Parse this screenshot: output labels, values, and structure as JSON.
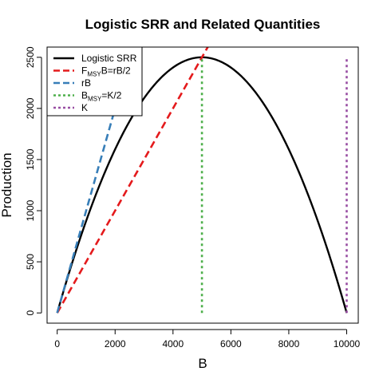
{
  "chart_data": {
    "type": "line",
    "title": "Logistic SRR and Related Quantities",
    "xlabel": "B",
    "ylabel": "Production",
    "xlim": [
      -350,
      10400
    ],
    "ylim": [
      -100,
      2600
    ],
    "xticks": [
      0,
      2000,
      4000,
      6000,
      8000,
      10000
    ],
    "yticks": [
      0,
      500,
      1000,
      1500,
      2000,
      2500
    ],
    "legend_position": "top-left",
    "params": {
      "r": 1,
      "K": 10000
    },
    "series": [
      {
        "id": "logistic",
        "name": "Logistic SRR",
        "legend": {
          "main": "Logistic SRR"
        },
        "color": "#000000",
        "style": "solid",
        "function": "r*B*(1-B/K)",
        "x_range": [
          0,
          10000
        ]
      },
      {
        "id": "fmsy",
        "name": "FMSYB=rB/2",
        "legend": {
          "main": "F",
          "sub": "MSY",
          "rest": "B=rB/2"
        },
        "color": "#e41a1c",
        "style": "dashed",
        "x": [
          0,
          5350
        ],
        "y": [
          0,
          2675
        ]
      },
      {
        "id": "rb",
        "name": "rB",
        "legend": {
          "main": "rB"
        },
        "color": "#377eb8",
        "style": "dashed",
        "x": [
          0,
          2000
        ],
        "y": [
          0,
          2000
        ]
      },
      {
        "id": "bmsy",
        "name": "BMSY=K/2",
        "legend": {
          "main": "B",
          "sub": "MSY",
          "rest": "=K/2"
        },
        "color": "#4daf4a",
        "style": "dotted",
        "x": [
          5000,
          5000
        ],
        "y": [
          0,
          2500
        ]
      },
      {
        "id": "k",
        "name": "K",
        "legend": {
          "main": "K"
        },
        "color": "#984ea3",
        "style": "dotted",
        "x": [
          10000,
          10000
        ],
        "y": [
          0,
          2500
        ]
      }
    ]
  }
}
